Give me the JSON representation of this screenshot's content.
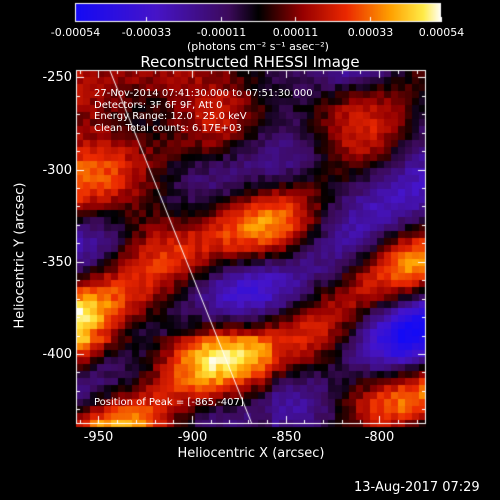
{
  "colorbar": {
    "tick_labels": [
      "-0.00054",
      "-0.00033",
      "-0.00011",
      "0.00011",
      "0.00033",
      "0.00054"
    ],
    "tick_values": [
      -0.00054,
      -0.00033,
      -0.00011,
      0.00011,
      0.00033,
      0.00054
    ],
    "range": [
      -0.00054,
      0.00054
    ],
    "unit_label": "(photons cm⁻² s⁻¹ asec⁻²)"
  },
  "plot": {
    "title": "Reconstructed RHESSI Image",
    "xlabel": "Heliocentric X (arcsec)",
    "ylabel": "Heliocentric Y (arcsec)",
    "xlim": [
      -962,
      -775
    ],
    "ylim": [
      -438,
      -246
    ],
    "x_tick_labels": [
      "-950",
      "-900",
      "-850",
      "-800"
    ],
    "x_tick_values": [
      -950,
      -900,
      -850,
      -800
    ],
    "y_tick_labels": [
      "-250",
      "-300",
      "-350",
      "-400"
    ],
    "y_tick_values": [
      -250,
      -300,
      -350,
      -400
    ],
    "info_lines": [
      "27-Nov-2014 07:41:30.000 to 07:51:30.000",
      "Detectors: 3F 6F 9F, Att 0",
      "Energy Range: 12.0 - 25.0 keV",
      "Clean    Total counts: 6.17E+03"
    ],
    "peak_label": "Position of Peak = [-865,-407]",
    "peak": [
      -865,
      -407
    ],
    "limb_line": {
      "x1": -944,
      "y1": -246,
      "x2": -868,
      "y2": -438
    }
  },
  "timestamp": "13-Aug-2017 07:29"
}
